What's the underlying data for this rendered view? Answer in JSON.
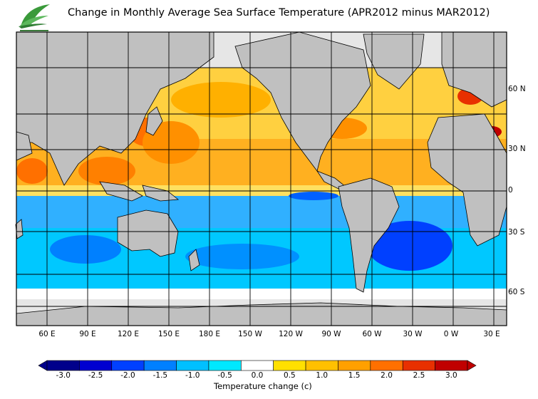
{
  "title": "Change in Monthly Average Sea Surface Temperature (APR2012 minus MAR2012)",
  "lon_ticks": [
    "60 E",
    "90 E",
    "120 E",
    "150 E",
    "180 E",
    "150 W",
    "120 W",
    "90 W",
    "60 W",
    "30 W",
    "0 W",
    "30 E"
  ],
  "lat_ticks": [
    "60 N",
    "30 N",
    "0",
    "30 S",
    "60 S"
  ],
  "colorbar": {
    "labels": [
      "-3.0",
      "-2.5",
      "-2.0",
      "-1.5",
      "-1.0",
      "-0.5",
      "0.0",
      "0.5",
      "1.0",
      "1.5",
      "2.0",
      "2.5",
      "3.0"
    ],
    "colors": [
      "#00008b",
      "#0000d0",
      "#0040ff",
      "#0080ff",
      "#00c0ff",
      "#00e8ff",
      "#ffffff",
      "#ffe000",
      "#ffc000",
      "#ffa000",
      "#ff7000",
      "#e83000",
      "#c00000"
    ],
    "title": "Temperature change  (c)"
  },
  "colors": {
    "land": "#c0c0c0",
    "ice": "#e6e6e6",
    "grid": "#000000"
  }
}
